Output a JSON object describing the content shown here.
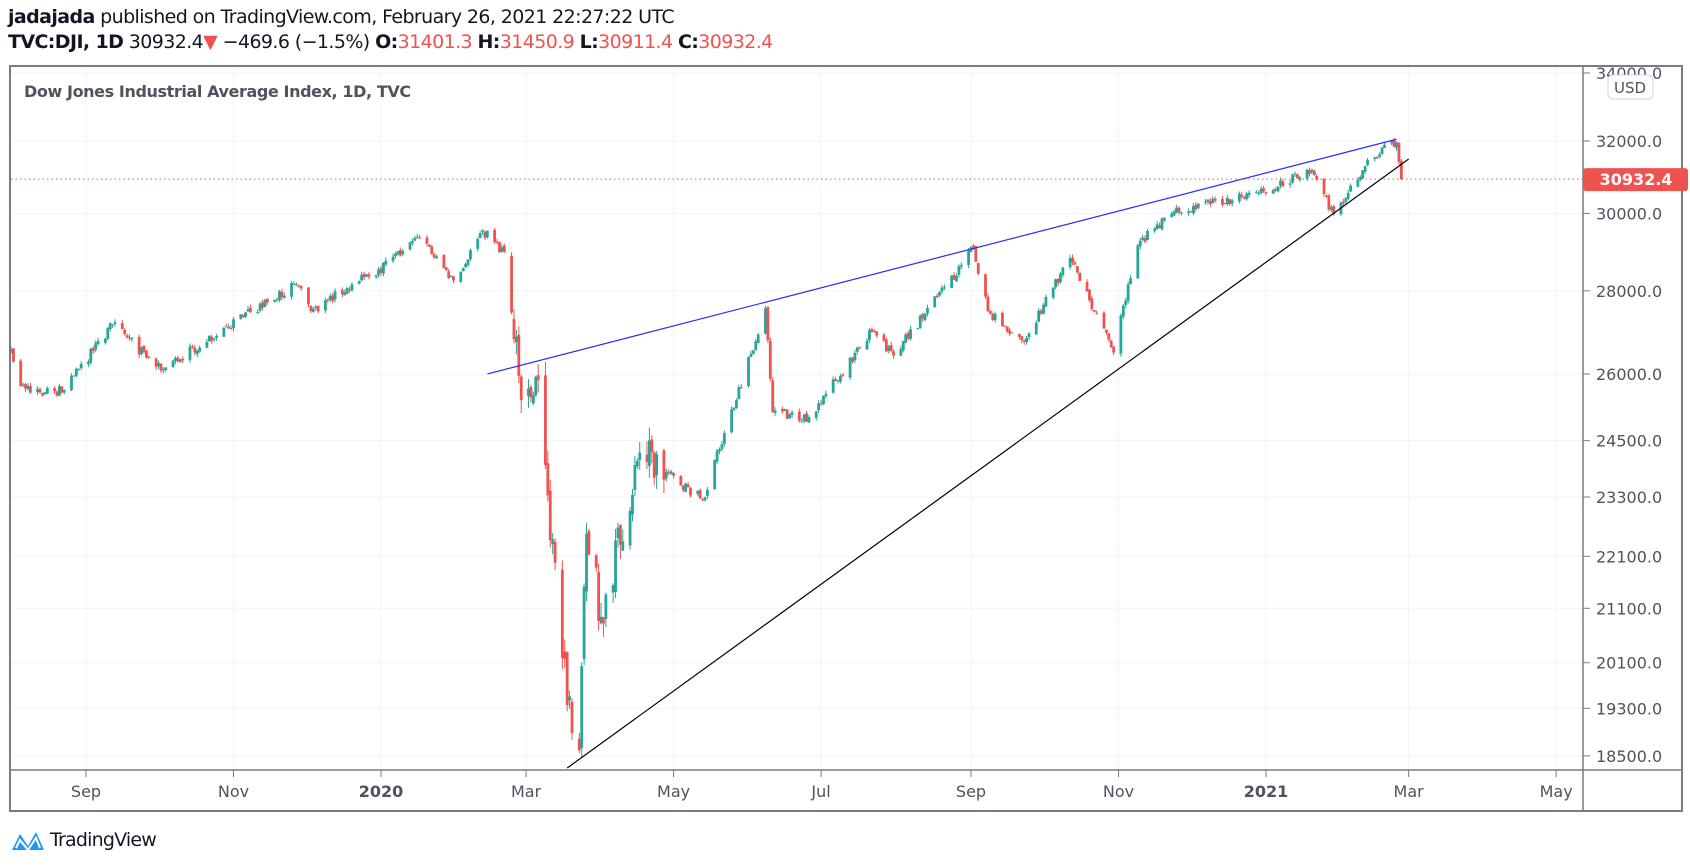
{
  "header": {
    "author": "jadajada",
    "published_text": "published on TradingView.com, February 26, 2021 22:27:22 UTC",
    "symbol": "TVC:DJI, 1D",
    "last": "30932.4",
    "change": "−469.6 (−1.5%)",
    "o_label": "O:",
    "o": "31401.3",
    "h_label": "H:",
    "h": "31450.9",
    "l_label": "L:",
    "l": "30911.4",
    "c_label": "C:",
    "c": "30932.4"
  },
  "logo_text": "TradingView",
  "colors": {
    "up": "#26a69a",
    "down": "#ef5350",
    "upper_trendline": "#2a2aff",
    "lower_trendline": "#000000",
    "last_price": "#ef5350"
  },
  "chart_data": {
    "type": "candlestick",
    "title": "Dow Jones Industrial Average Index, 1D, TVC",
    "currency": "USD",
    "y_scale": "log",
    "ylim": [
      18300,
      34300
    ],
    "xlim": [
      "2019-07-29",
      "2021-05-27"
    ],
    "y_ticks": [
      "34000.0",
      "32000.0",
      "30000.0",
      "28000.0",
      "26000.0",
      "24500.0",
      "23300.0",
      "22100.0",
      "21100.0",
      "20100.0",
      "19300.0",
      "18500.0"
    ],
    "x_ticks": [
      {
        "date": "2019-09-01",
        "label": "Sep",
        "bold": false
      },
      {
        "date": "2019-11-01",
        "label": "Nov",
        "bold": false
      },
      {
        "date": "2020-01-01",
        "label": "2020",
        "bold": true
      },
      {
        "date": "2020-03-01",
        "label": "Mar",
        "bold": false
      },
      {
        "date": "2020-05-01",
        "label": "May",
        "bold": false
      },
      {
        "date": "2020-07-01",
        "label": "Jul",
        "bold": false
      },
      {
        "date": "2020-09-01",
        "label": "Sep",
        "bold": false
      },
      {
        "date": "2020-11-01",
        "label": "Nov",
        "bold": false
      },
      {
        "date": "2021-01-01",
        "label": "2021",
        "bold": true
      },
      {
        "date": "2021-03-01",
        "label": "Mar",
        "bold": false
      },
      {
        "date": "2021-05-01",
        "label": "May",
        "bold": false
      }
    ],
    "last_price": 30932.4,
    "last_price_label": "30932.4",
    "close_path": [
      [
        "2019-08-01",
        26580
      ],
      [
        "2019-08-05",
        25720
      ],
      [
        "2019-08-15",
        25580
      ],
      [
        "2019-08-23",
        25630
      ],
      [
        "2019-09-12",
        27180
      ],
      [
        "2019-10-02",
        26080
      ],
      [
        "2019-10-28",
        27090
      ],
      [
        "2019-11-27",
        28160
      ],
      [
        "2019-12-03",
        27500
      ],
      [
        "2019-12-31",
        28540
      ],
      [
        "2020-01-17",
        29350
      ],
      [
        "2020-01-31",
        28260
      ],
      [
        "2020-02-12",
        29550
      ],
      [
        "2020-02-21",
        28990
      ],
      [
        "2020-02-28",
        25400
      ],
      [
        "2020-03-06",
        25860
      ],
      [
        "2020-03-16",
        20190
      ],
      [
        "2020-03-23",
        18590
      ],
      [
        "2020-03-26",
        22550
      ],
      [
        "2020-04-01",
        20940
      ],
      [
        "2020-04-17",
        24240
      ],
      [
        "2020-05-13",
        23250
      ],
      [
        "2020-06-08",
        27570
      ],
      [
        "2020-06-11",
        25130
      ],
      [
        "2020-06-26",
        25020
      ],
      [
        "2020-07-22",
        27000
      ],
      [
        "2020-07-31",
        26430
      ],
      [
        "2020-08-28",
        28650
      ],
      [
        "2020-09-02",
        29100
      ],
      [
        "2020-09-08",
        27500
      ],
      [
        "2020-09-23",
        26760
      ],
      [
        "2020-10-12",
        28830
      ],
      [
        "2020-10-30",
        26500
      ],
      [
        "2020-11-09",
        29160
      ],
      [
        "2020-11-24",
        30050
      ],
      [
        "2020-12-31",
        30600
      ],
      [
        "2021-01-20",
        31190
      ],
      [
        "2021-01-29",
        29980
      ],
      [
        "2021-02-12",
        31460
      ],
      [
        "2021-02-24",
        31960
      ],
      [
        "2021-02-25",
        31401.3
      ],
      [
        "2021-02-26",
        30932.4
      ]
    ],
    "trendlines": [
      {
        "name": "upper",
        "from": [
          "2020-02-14",
          26000
        ],
        "to": [
          "2021-02-24",
          32050
        ]
      },
      {
        "name": "lower",
        "from": [
          "2020-03-18",
          18300
        ],
        "to": [
          "2021-03-01",
          31490
        ]
      }
    ]
  }
}
